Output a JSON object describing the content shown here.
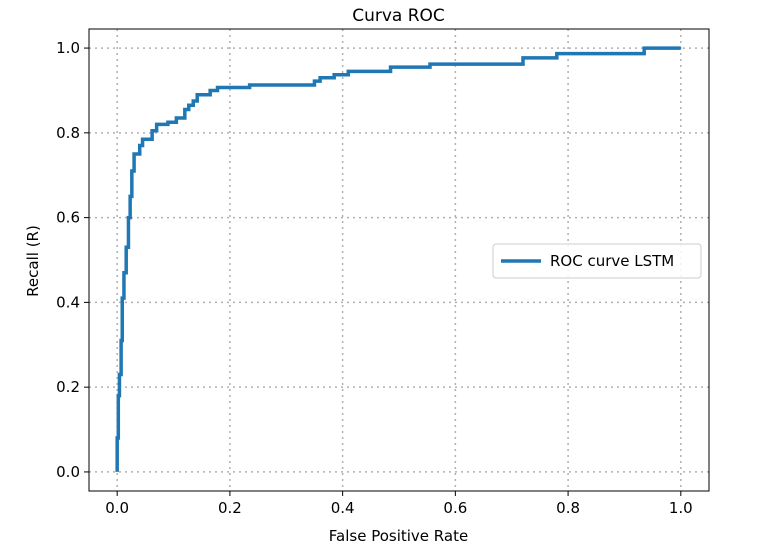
{
  "chart_data": {
    "type": "line",
    "title": "Curva ROC",
    "xlabel": "False Positive Rate",
    "ylabel": "Recall (R)",
    "xlim": [
      -0.05,
      1.05
    ],
    "ylim": [
      -0.045,
      1.045
    ],
    "xticks": [
      0.0,
      0.2,
      0.4,
      0.6,
      0.8,
      1.0
    ],
    "xtick_labels": [
      "0.0",
      "0.2",
      "0.4",
      "0.6",
      "0.8",
      "1.0"
    ],
    "yticks": [
      0.0,
      0.2,
      0.4,
      0.6,
      0.8,
      1.0
    ],
    "ytick_labels": [
      "0.0",
      "0.2",
      "0.4",
      "0.6",
      "0.8",
      "1.0"
    ],
    "grid": true,
    "legend_position": "center-right",
    "series": [
      {
        "name": "ROC curve LSTM",
        "color": "#1f77b4",
        "points": [
          [
            0.0,
            0.0
          ],
          [
            0.0,
            0.08
          ],
          [
            0.002,
            0.08
          ],
          [
            0.002,
            0.18
          ],
          [
            0.004,
            0.18
          ],
          [
            0.004,
            0.23
          ],
          [
            0.007,
            0.23
          ],
          [
            0.007,
            0.31
          ],
          [
            0.009,
            0.31
          ],
          [
            0.009,
            0.41
          ],
          [
            0.012,
            0.41
          ],
          [
            0.012,
            0.47
          ],
          [
            0.016,
            0.47
          ],
          [
            0.016,
            0.53
          ],
          [
            0.02,
            0.53
          ],
          [
            0.02,
            0.6
          ],
          [
            0.023,
            0.6
          ],
          [
            0.023,
            0.65
          ],
          [
            0.026,
            0.65
          ],
          [
            0.026,
            0.71
          ],
          [
            0.03,
            0.71
          ],
          [
            0.03,
            0.75
          ],
          [
            0.04,
            0.75
          ],
          [
            0.04,
            0.77
          ],
          [
            0.045,
            0.77
          ],
          [
            0.045,
            0.785
          ],
          [
            0.062,
            0.785
          ],
          [
            0.062,
            0.805
          ],
          [
            0.07,
            0.805
          ],
          [
            0.07,
            0.82
          ],
          [
            0.09,
            0.82
          ],
          [
            0.09,
            0.825
          ],
          [
            0.105,
            0.825
          ],
          [
            0.105,
            0.835
          ],
          [
            0.12,
            0.835
          ],
          [
            0.12,
            0.855
          ],
          [
            0.127,
            0.855
          ],
          [
            0.127,
            0.865
          ],
          [
            0.135,
            0.865
          ],
          [
            0.135,
            0.875
          ],
          [
            0.142,
            0.875
          ],
          [
            0.142,
            0.89
          ],
          [
            0.165,
            0.89
          ],
          [
            0.165,
            0.9
          ],
          [
            0.178,
            0.9
          ],
          [
            0.178,
            0.907
          ],
          [
            0.235,
            0.907
          ],
          [
            0.235,
            0.913
          ],
          [
            0.35,
            0.913
          ],
          [
            0.35,
            0.922
          ],
          [
            0.36,
            0.922
          ],
          [
            0.36,
            0.93
          ],
          [
            0.385,
            0.93
          ],
          [
            0.385,
            0.937
          ],
          [
            0.41,
            0.937
          ],
          [
            0.41,
            0.945
          ],
          [
            0.485,
            0.945
          ],
          [
            0.485,
            0.955
          ],
          [
            0.555,
            0.955
          ],
          [
            0.555,
            0.962
          ],
          [
            0.72,
            0.962
          ],
          [
            0.72,
            0.977
          ],
          [
            0.78,
            0.977
          ],
          [
            0.78,
            0.987
          ],
          [
            0.935,
            0.987
          ],
          [
            0.935,
            1.0
          ],
          [
            1.0,
            1.0
          ]
        ]
      }
    ]
  }
}
